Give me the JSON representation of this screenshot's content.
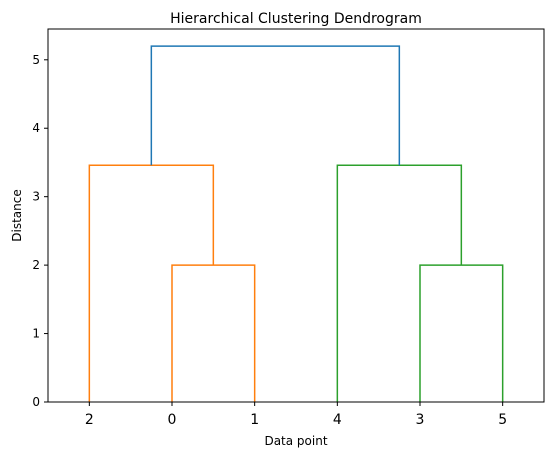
{
  "chart_data": {
    "type": "dendrogram",
    "title": "Hierarchical Clustering Dendrogram",
    "xlabel": "Data point",
    "ylabel": "Distance",
    "leaf_order": [
      "2",
      "0",
      "1",
      "4",
      "3",
      "5"
    ],
    "ylim": [
      0,
      5.45
    ],
    "y_ticks": [
      0,
      1,
      2,
      3,
      4,
      5
    ],
    "grid": false,
    "links": [
      {
        "name": "merge-0-1",
        "left": "0",
        "right": "1",
        "height": 2.0,
        "color": "#ff7f0e"
      },
      {
        "name": "merge-3-5",
        "left": "3",
        "right": "5",
        "height": 2.0,
        "color": "#2ca02c"
      },
      {
        "name": "merge-2-01",
        "left": "2",
        "right": "merge-0-1",
        "height": 3.46,
        "color": "#ff7f0e"
      },
      {
        "name": "merge-4-35",
        "left": "4",
        "right": "merge-3-5",
        "height": 3.46,
        "color": "#2ca02c"
      },
      {
        "name": "merge-root",
        "left": "merge-2-01",
        "right": "merge-4-35",
        "height": 5.2,
        "color": "#1f77b4"
      }
    ]
  }
}
